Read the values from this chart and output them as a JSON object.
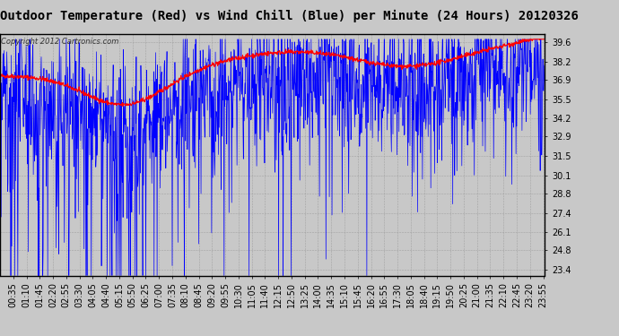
{
  "title": "Outdoor Temperature (Red) vs Wind Chill (Blue) per Minute (24 Hours) 20120326",
  "copyright": "Copyright 2012 Cartronics.com",
  "y_ticks": [
    23.4,
    24.8,
    26.1,
    27.4,
    28.8,
    30.1,
    31.5,
    32.9,
    34.2,
    35.5,
    36.9,
    38.2,
    39.6
  ],
  "ylim": [
    23.0,
    40.2
  ],
  "bg_color": "#c8c8c8",
  "plot_bg": "#c8c8c8",
  "red_color": "#ff0000",
  "blue_color": "#0000ff",
  "title_fontsize": 10,
  "tick_fontsize": 7,
  "n_minutes": 1440
}
